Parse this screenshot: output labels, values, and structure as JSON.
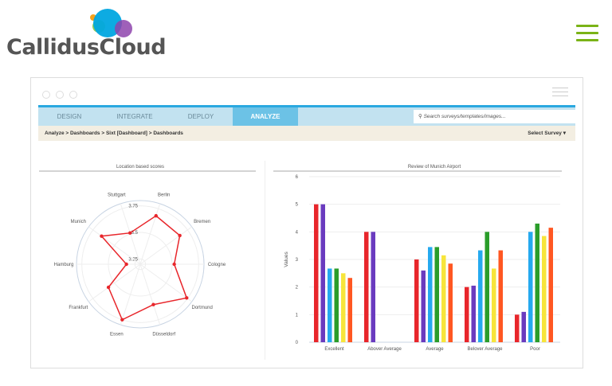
{
  "brand": {
    "name": "CallidusCloud",
    "colors": {
      "orange": "#f7a21b",
      "green": "#8cc63f",
      "blue": "#00a6e0",
      "purple": "#8e44ad",
      "menu": "#7ab317"
    }
  },
  "header": {
    "menu_icon": "hamburger-icon"
  },
  "window": {
    "nav": {
      "tabs": [
        {
          "label": "DESIGN"
        },
        {
          "label": "INTEGRATE"
        },
        {
          "label": "DEPLOY"
        },
        {
          "label": "ANALYZE",
          "active": true
        }
      ],
      "search_placeholder": "Search surveys/templates/images..."
    },
    "breadcrumb": "Analyze > Dashboards > Sixt [Dashboard] > Dashboards",
    "select_survey": "Select Survey ▾"
  },
  "chart_data": [
    {
      "type": "radar",
      "title": "Location based scores",
      "categories": [
        "Berlin",
        "Bremen",
        "Cologne",
        "Dortmund",
        "Düsseldorf",
        "Essen",
        "Frankfurt",
        "Hamburg",
        "Munich",
        "Stuttgart"
      ],
      "values": [
        3.68,
        3.66,
        3.52,
        3.74,
        3.6,
        3.75,
        3.57,
        3.33,
        3.65,
        3.51
      ],
      "tick_labels": [
        "3.25",
        "3.5",
        "3.75"
      ],
      "range": [
        3.2,
        3.8
      ],
      "color": "#e8262b"
    },
    {
      "type": "bar",
      "title": "Review of Munich Airport",
      "ylabel": "Values",
      "ylim": [
        0,
        6
      ],
      "yticks": [
        "0",
        "1",
        "2",
        "3",
        "4",
        "5",
        "6"
      ],
      "categories": [
        "Excellent",
        "Abover Average",
        "Average",
        "Belover Average",
        "Poor"
      ],
      "colors": [
        "#e8262b",
        "#6a3bbf",
        "#25a9ef",
        "#2a9d2a",
        "#f7e53b",
        "#ff5722"
      ],
      "series": [
        {
          "values": [
            5,
            4,
            3,
            2,
            1
          ]
        },
        {
          "values": [
            5,
            4,
            2.6,
            2.05,
            1.1
          ]
        },
        {
          "values": [
            2.67,
            0,
            3.45,
            3.33,
            4
          ]
        },
        {
          "values": [
            2.67,
            0,
            3.45,
            4,
            4.3
          ]
        },
        {
          "values": [
            2.5,
            0,
            3.15,
            2.67,
            3.85
          ]
        },
        {
          "values": [
            2.33,
            0,
            2.85,
            3.33,
            4.15
          ]
        }
      ]
    }
  ]
}
